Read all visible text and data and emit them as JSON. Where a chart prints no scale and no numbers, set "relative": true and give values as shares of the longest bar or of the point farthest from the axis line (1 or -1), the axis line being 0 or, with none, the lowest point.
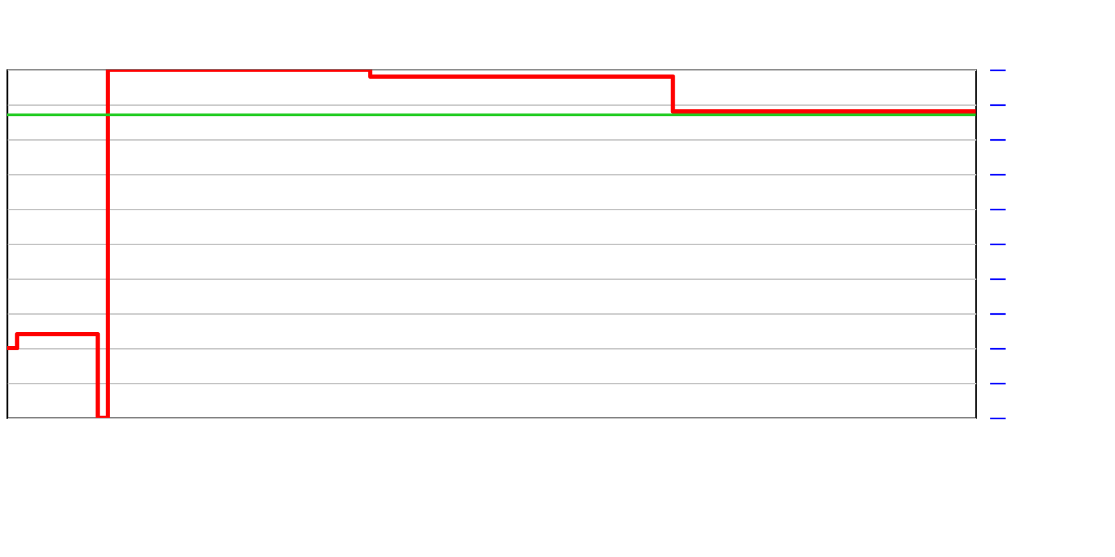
{
  "chart_data": {
    "type": "step",
    "relative": true,
    "color": "#ff0000",
    "categories": [
      null,
      null,
      null,
      null,
      null,
      null,
      null,
      null,
      null,
      null,
      null,
      null,
      null,
      null,
      null,
      null,
      null,
      null,
      null,
      null,
      null,
      null,
      null,
      null,
      null,
      null,
      null,
      null,
      null,
      null,
      null,
      null,
      null,
      null,
      null,
      null,
      null,
      null,
      null,
      null,
      null,
      null,
      null,
      null,
      null,
      null,
      null,
      null,
      null,
      null,
      null,
      null,
      null,
      null,
      null,
      null,
      null,
      null,
      null,
      null,
      null,
      null,
      null,
      null,
      null,
      null,
      null,
      null,
      null,
      null,
      null,
      null,
      null,
      null,
      null,
      null,
      null,
      null,
      null,
      null,
      null,
      null,
      null,
      null,
      null,
      null,
      null,
      null,
      null,
      null,
      null,
      null,
      null,
      null,
      null,
      null,
      null
    ],
    "values": [
      0.2,
      0.24,
      0.24,
      0.24,
      0.24,
      0.24,
      0.24,
      0.24,
      0.24,
      0,
      1,
      1,
      1,
      1,
      1,
      1,
      1,
      1,
      1,
      1,
      1,
      1,
      1,
      1,
      1,
      1,
      1,
      1,
      1,
      1,
      1,
      1,
      1,
      1,
      1,
      1,
      0.98,
      0.98,
      0.98,
      0.98,
      0.98,
      0.98,
      0.98,
      0.98,
      0.98,
      0.98,
      0.98,
      0.98,
      0.98,
      0.98,
      0.98,
      0.98,
      0.98,
      0.98,
      0.98,
      0.98,
      0.98,
      0.98,
      0.98,
      0.98,
      0.98,
      0.98,
      0.98,
      0.98,
      0.98,
      0.98,
      0.88,
      0.88,
      0.88,
      0.88,
      0.88,
      0.88,
      0.88,
      0.88,
      0.88,
      0.88,
      0.88,
      0.88,
      0.88,
      0.88,
      0.88,
      0.88,
      0.88,
      0.88,
      0.88,
      0.88,
      0.88,
      0.88,
      0.88,
      0.88,
      0.88,
      0.88,
      0.88,
      0.88,
      0.88,
      0.88,
      0.88
    ],
    "ref_lines": [
      {
        "axis": "y",
        "value": 0.87,
        "color": "#22cc22"
      }
    ],
    "grid": "y"
  }
}
